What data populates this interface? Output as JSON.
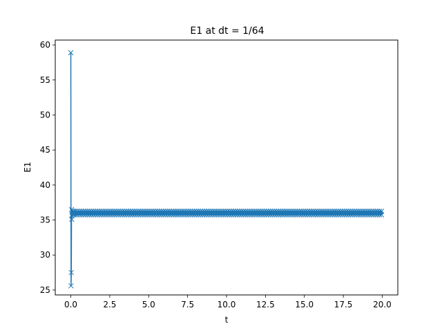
{
  "chart_data": {
    "type": "line",
    "title": "E1 at dt = 1/64",
    "xlabel": "t",
    "ylabel": "E1",
    "xlim": [
      -1.0,
      21.0
    ],
    "ylim": [
      24.3,
      60.7
    ],
    "xticks": [
      0.0,
      2.5,
      5.0,
      7.5,
      10.0,
      12.5,
      15.0,
      17.5,
      20.0
    ],
    "xtick_labels": [
      "0.0",
      "2.5",
      "5.0",
      "7.5",
      "10.0",
      "12.5",
      "15.0",
      "17.5",
      "20.0"
    ],
    "yticks": [
      25,
      30,
      35,
      40,
      45,
      50,
      55,
      60
    ],
    "ytick_labels": [
      "25",
      "30",
      "35",
      "40",
      "45",
      "50",
      "55",
      "60"
    ],
    "marker": "x",
    "grid": false,
    "series": [
      {
        "color": "#1f77b4",
        "dt": 0.015625,
        "t_end": 20.0,
        "initial_points": [
          {
            "x": 0.0,
            "y": 58.9
          },
          {
            "x": 0.015625,
            "y": 25.6
          },
          {
            "x": 0.03125,
            "y": 27.5
          },
          {
            "x": 0.046875,
            "y": 36.5
          },
          {
            "x": 0.0625,
            "y": 35.1
          },
          {
            "x": 0.078125,
            "y": 35.6
          },
          {
            "x": 0.09375,
            "y": 36.3
          },
          {
            "x": 0.109375,
            "y": 35.8
          },
          {
            "x": 0.125,
            "y": 36.1
          },
          {
            "x": 0.140625,
            "y": 35.9
          },
          {
            "x": 0.15625,
            "y": 36.2
          },
          {
            "x": 0.171875,
            "y": 35.9
          },
          {
            "x": 0.1875,
            "y": 36.0
          }
        ],
        "steady_value": 36.0,
        "steady_band": [
          35.75,
          36.25
        ]
      }
    ]
  }
}
